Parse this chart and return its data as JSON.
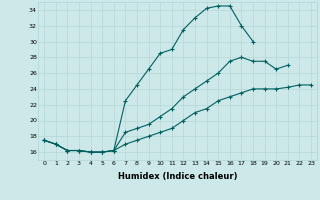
{
  "xlabel": "Humidex (Indice chaleur)",
  "bg_color": "#cce8e8",
  "line_color": "#006060",
  "xlim": [
    -0.5,
    23.5
  ],
  "ylim": [
    15.0,
    35.0
  ],
  "yticks": [
    16,
    18,
    20,
    22,
    24,
    26,
    28,
    30,
    32,
    34
  ],
  "xticks": [
    0,
    1,
    2,
    3,
    4,
    5,
    6,
    7,
    8,
    9,
    10,
    11,
    12,
    13,
    14,
    15,
    16,
    17,
    18,
    19,
    20,
    21,
    22,
    23
  ],
  "line1_x": [
    0,
    1,
    2,
    3,
    4,
    5,
    6,
    7,
    8,
    9,
    10,
    11,
    12,
    13,
    14,
    15,
    16,
    17,
    18
  ],
  "line1_y": [
    17.5,
    17.0,
    16.2,
    16.2,
    16.0,
    16.0,
    16.2,
    22.5,
    24.5,
    26.5,
    28.5,
    29.0,
    31.5,
    33.0,
    34.2,
    34.5,
    34.5,
    32.0,
    30.0
  ],
  "line2_x": [
    0,
    1,
    2,
    3,
    4,
    5,
    6,
    7,
    8,
    9,
    10,
    11,
    12,
    13,
    14,
    15,
    16,
    17,
    18,
    19,
    20,
    21
  ],
  "line2_y": [
    17.5,
    17.0,
    16.2,
    16.2,
    16.0,
    16.0,
    16.2,
    18.5,
    19.0,
    19.5,
    20.5,
    21.5,
    23.0,
    24.0,
    25.0,
    26.0,
    27.5,
    28.0,
    27.5,
    27.5,
    26.5,
    27.0
  ],
  "line3_x": [
    0,
    1,
    2,
    3,
    4,
    5,
    6,
    7,
    8,
    9,
    10,
    11,
    12,
    13,
    14,
    15,
    16,
    17,
    18,
    19,
    20,
    21,
    22,
    23
  ],
  "line3_y": [
    17.5,
    17.0,
    16.2,
    16.2,
    16.0,
    16.0,
    16.2,
    17.0,
    17.5,
    18.0,
    18.5,
    19.0,
    20.0,
    21.0,
    21.5,
    22.5,
    23.0,
    23.5,
    24.0,
    24.0,
    24.0,
    24.2,
    24.5,
    24.5
  ]
}
